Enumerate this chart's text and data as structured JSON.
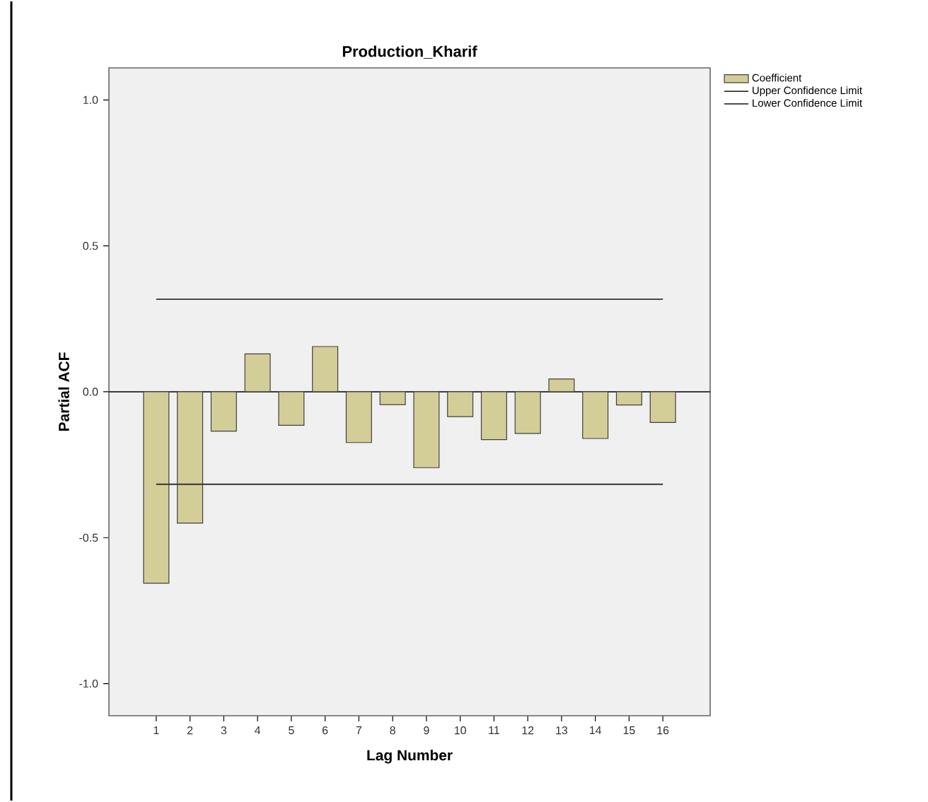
{
  "chart_data": {
    "type": "bar",
    "title": "Production_Kharif",
    "xlabel": "Lag Number",
    "ylabel": "Partial ACF",
    "categories": [
      "1",
      "2",
      "3",
      "4",
      "5",
      "6",
      "7",
      "8",
      "9",
      "10",
      "11",
      "12",
      "13",
      "14",
      "15",
      "16"
    ],
    "series": [
      {
        "name": "Coefficient",
        "color": "#d3ce98",
        "values": [
          -0.656,
          -0.45,
          -0.135,
          0.13,
          -0.115,
          0.155,
          -0.174,
          -0.044,
          -0.26,
          -0.085,
          -0.164,
          -0.143,
          0.044,
          -0.16,
          -0.045,
          -0.105
        ]
      },
      {
        "name": "Upper Confidence Limit",
        "type": "line",
        "color": "#333333",
        "x": [
          "1",
          "16"
        ],
        "values": [
          0.317,
          0.317
        ]
      },
      {
        "name": "Lower Confidence Limit",
        "type": "line",
        "color": "#333333",
        "x": [
          "1",
          "16"
        ],
        "values": [
          -0.317,
          -0.317
        ]
      }
    ],
    "ylim": [
      -1.11,
      1.11
    ],
    "yticks": [
      {
        "value": -1,
        "label": "-1.0"
      },
      {
        "value": -0.5,
        "label": "-0.5"
      },
      {
        "value": 0,
        "label": "0.0"
      },
      {
        "value": 0.5,
        "label": "0.5"
      },
      {
        "value": 1,
        "label": "1.0"
      }
    ],
    "ref_lines": [
      {
        "axis": "y",
        "value": 0,
        "color": "#000000"
      }
    ],
    "legend": "top right",
    "marker": "none",
    "line_style": "solid"
  }
}
